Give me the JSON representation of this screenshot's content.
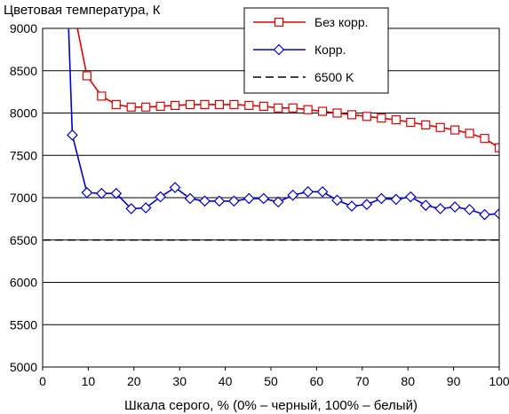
{
  "chart_data": {
    "type": "line",
    "title": "",
    "ylabel": "Цветовая температура, К",
    "xlabel": "Шкала серого, % (0% – черный, 100% – белый)",
    "xlim": [
      0,
      100
    ],
    "ylim": [
      5000,
      9000
    ],
    "xticks": [
      0,
      10,
      20,
      30,
      40,
      50,
      60,
      70,
      80,
      90,
      100
    ],
    "yticks": [
      5000,
      5500,
      6000,
      6500,
      7000,
      7500,
      8000,
      8500,
      9000
    ],
    "grid": "horizontal",
    "legend_position": "top-right",
    "series": [
      {
        "name": "Без корр.",
        "color": "#e00000",
        "marker": "square",
        "x": [
          6.5,
          9.7,
          12.9,
          16.1,
          19.4,
          22.6,
          25.8,
          29.0,
          32.3,
          35.5,
          38.7,
          41.9,
          45.2,
          48.4,
          51.6,
          54.8,
          58.1,
          61.3,
          64.5,
          67.7,
          71.0,
          74.2,
          77.4,
          80.6,
          83.9,
          87.1,
          90.3,
          93.5,
          96.8,
          100
        ],
        "y": [
          9300,
          8440,
          8200,
          8100,
          8070,
          8070,
          8080,
          8090,
          8100,
          8100,
          8100,
          8100,
          8090,
          8080,
          8060,
          8060,
          8040,
          8020,
          8000,
          7980,
          7960,
          7940,
          7920,
          7890,
          7860,
          7830,
          7800,
          7760,
          7700,
          7590
        ]
      },
      {
        "name": "Корр.",
        "color": "#0000d0",
        "marker": "diamond",
        "x": [
          5.5,
          6.5,
          9.7,
          12.9,
          16.1,
          19.4,
          22.6,
          25.8,
          29.0,
          32.3,
          35.5,
          38.7,
          41.9,
          45.2,
          48.4,
          51.6,
          54.8,
          58.1,
          61.3,
          64.5,
          67.7,
          71.0,
          74.2,
          77.4,
          80.6,
          83.9,
          87.1,
          90.3,
          93.5,
          96.8,
          100
        ],
        "y": [
          9300,
          7740,
          7060,
          7050,
          7050,
          6870,
          6880,
          7010,
          7120,
          6990,
          6960,
          6960,
          6960,
          6990,
          6990,
          6950,
          7030,
          7070,
          7070,
          6970,
          6900,
          6920,
          6990,
          6980,
          7010,
          6910,
          6870,
          6890,
          6860,
          6800,
          6810
        ]
      },
      {
        "name": "6500 K",
        "color": "#000000",
        "dashed": true,
        "x": [
          0,
          100
        ],
        "y": [
          6500,
          6500
        ]
      }
    ]
  }
}
